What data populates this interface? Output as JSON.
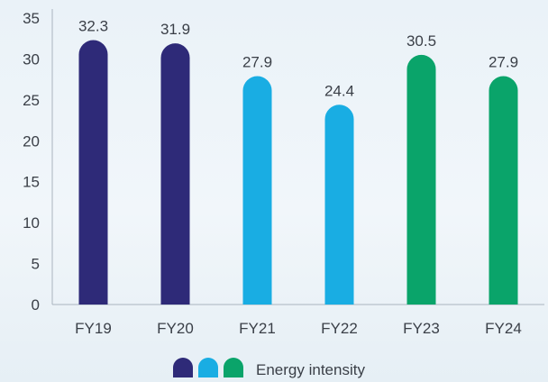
{
  "chart_data": {
    "type": "bar",
    "categories": [
      "FY19",
      "FY20",
      "FY21",
      "FY22",
      "FY23",
      "FY24"
    ],
    "values": [
      32.3,
      31.9,
      27.9,
      24.4,
      30.5,
      27.9
    ],
    "value_labels": [
      "32.3",
      "31.9",
      "27.9",
      "24.4",
      "30.5",
      "27.9"
    ],
    "bar_colors": [
      "#2e2a78",
      "#2e2a78",
      "#19ade3",
      "#19ade3",
      "#0aa46a",
      "#0aa46a"
    ],
    "ylim": [
      0,
      35
    ],
    "yticks": [
      0,
      5,
      10,
      15,
      20,
      25,
      30,
      35
    ],
    "grid": false,
    "legend": {
      "placement": "bottom-center",
      "swatch_colors": [
        "#2e2a78",
        "#19ade3",
        "#0aa46a"
      ],
      "label": "Energy intensity"
    },
    "title": "",
    "xlabel": "",
    "ylabel": ""
  }
}
